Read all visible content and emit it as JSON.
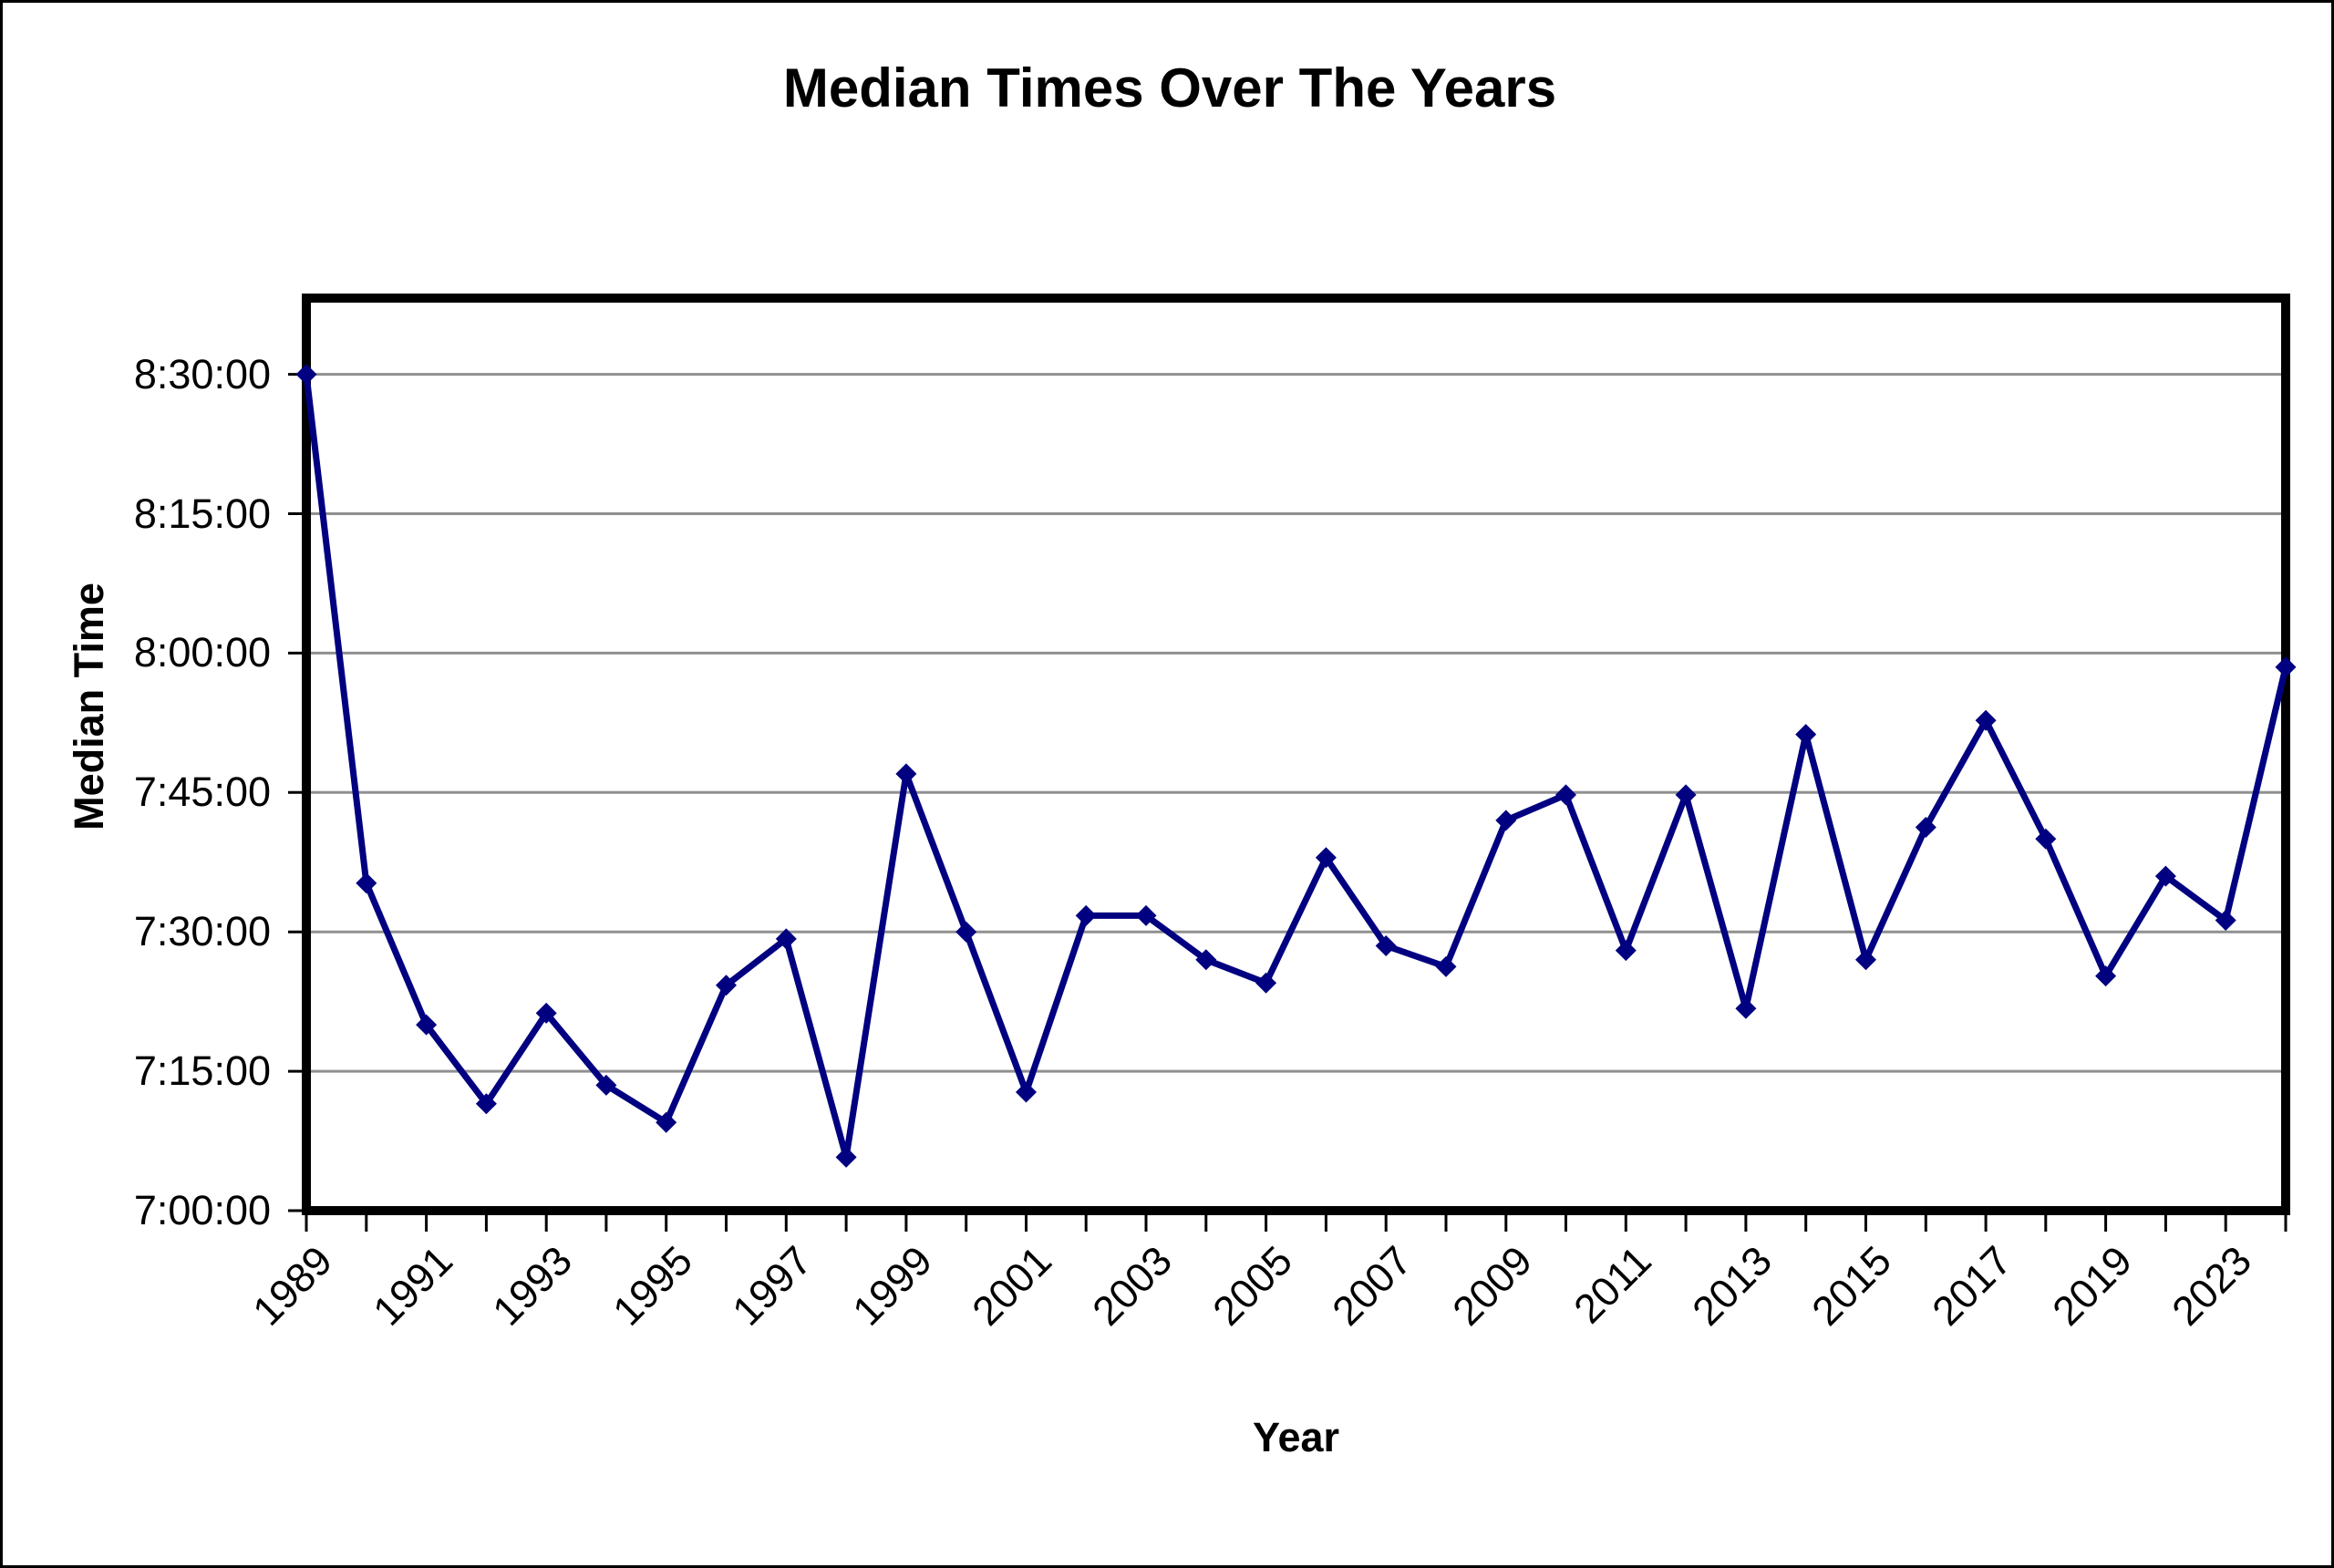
{
  "chart_data": {
    "type": "line",
    "title": "Median Times Over The Years",
    "xlabel": "Year",
    "ylabel": "Median Time",
    "legend": "none",
    "grid": "horizontal",
    "background_color": "#ffffff",
    "gridline_color": "#909090",
    "frame_color": "#000000",
    "series_name": "Median Time",
    "line_color": "#000080",
    "marker": "diamond",
    "ylim": [
      "7:00:00",
      "8:38:30"
    ],
    "y_tick_labels": [
      "8:30:00",
      "8:15:00",
      "8:00:00",
      "7:45:00",
      "7:30:00",
      "7:15:00",
      "7:00:00"
    ],
    "x_tick_labels_shown": [
      "1989",
      "1991",
      "1993",
      "1995",
      "1997",
      "1999",
      "2001",
      "2003",
      "2005",
      "2007",
      "2009",
      "2011",
      "2013",
      "2015",
      "2017",
      "2019",
      "2023"
    ],
    "points": [
      {
        "year": "1989",
        "median_time": "8:30:00"
      },
      {
        "year": "1990",
        "median_time": "7:35:15"
      },
      {
        "year": "1991",
        "median_time": "7:20:00"
      },
      {
        "year": "1992",
        "median_time": "7:11:30"
      },
      {
        "year": "1993",
        "median_time": "7:21:15"
      },
      {
        "year": "1994",
        "median_time": "7:13:30"
      },
      {
        "year": "1995",
        "median_time": "7:09:30"
      },
      {
        "year": "1996",
        "median_time": "7:24:15"
      },
      {
        "year": "1997",
        "median_time": "7:29:15"
      },
      {
        "year": "1998",
        "median_time": "7:05:45"
      },
      {
        "year": "1999",
        "median_time": "7:47:00"
      },
      {
        "year": "2000",
        "median_time": "7:30:00"
      },
      {
        "year": "2001",
        "median_time": "7:12:45"
      },
      {
        "year": "2002",
        "median_time": "7:31:45"
      },
      {
        "year": "2003",
        "median_time": "7:31:45"
      },
      {
        "year": "2004",
        "median_time": "7:27:00"
      },
      {
        "year": "2005",
        "median_time": "7:24:30"
      },
      {
        "year": "2006",
        "median_time": "7:38:00"
      },
      {
        "year": "2007",
        "median_time": "7:28:30"
      },
      {
        "year": "2008",
        "median_time": "7:26:15"
      },
      {
        "year": "2009",
        "median_time": "7:42:00"
      },
      {
        "year": "2010",
        "median_time": "7:44:45"
      },
      {
        "year": "2011",
        "median_time": "7:28:00"
      },
      {
        "year": "2012",
        "median_time": "7:44:45"
      },
      {
        "year": "2013",
        "median_time": "7:21:45"
      },
      {
        "year": "2014",
        "median_time": "7:51:15"
      },
      {
        "year": "2015",
        "median_time": "7:27:00"
      },
      {
        "year": "2016",
        "median_time": "7:41:15"
      },
      {
        "year": "2017",
        "median_time": "7:52:45"
      },
      {
        "year": "2018",
        "median_time": "7:40:00"
      },
      {
        "year": "2019",
        "median_time": "7:25:15"
      },
      {
        "year": "2022",
        "median_time": "7:36:00"
      },
      {
        "year": "2023",
        "median_time": "7:31:15"
      },
      {
        "year": "2024",
        "median_time": "7:58:30"
      }
    ]
  }
}
